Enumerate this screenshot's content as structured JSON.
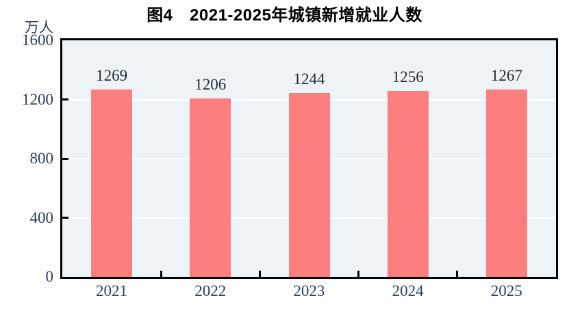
{
  "figure": {
    "title": "图4　2021-2025年城镇新增就业人数",
    "y_unit": "万人"
  },
  "chart_data": {
    "type": "bar",
    "title": "图4 2021-2025年城镇新增就业人数",
    "xlabel": "",
    "ylabel": "万人",
    "categories": [
      "2021",
      "2022",
      "2023",
      "2024",
      "2025"
    ],
    "values": [
      1269,
      1206,
      1244,
      1256,
      1267
    ],
    "bar_labels": [
      "1269",
      "1206",
      "1244",
      "1256",
      "1267"
    ],
    "ylim": [
      0,
      1600
    ],
    "yticks": [
      0,
      400,
      800,
      1200,
      1600
    ],
    "legend": "none",
    "grid": "horizontal",
    "colors": {
      "bar": "#FC7E7E",
      "plot_background": "#EEF3F7",
      "gridline": "#FFFFFF",
      "axis_frame": "#000000",
      "axis_label_text": "#2B3E5C",
      "value_label_text": "#222B38",
      "title_text": "#000000",
      "page_background": "#FFFFFF"
    }
  }
}
